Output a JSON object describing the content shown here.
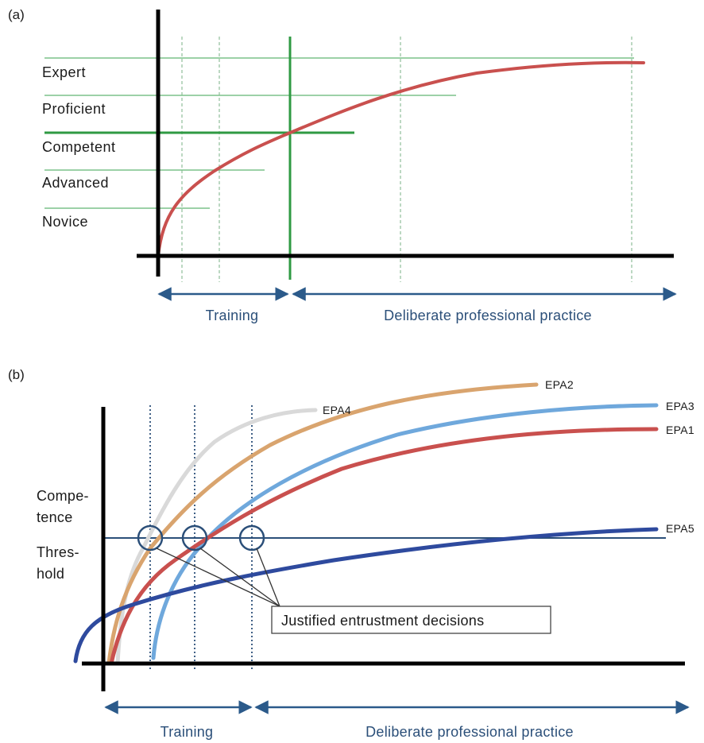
{
  "panel_a": {
    "label": "(a)",
    "levels": [
      "Expert",
      "Proficient",
      "Competent",
      "Advanced",
      "Novice"
    ],
    "phases": {
      "training": "Training",
      "practice": "Deliberate professional practice"
    }
  },
  "panel_b": {
    "label": "(b)",
    "threshold_label": [
      "Compe-",
      "tence",
      "Thres-",
      "hold"
    ],
    "epas": [
      "EPA4",
      "EPA2",
      "EPA3",
      "EPA1",
      "EPA5"
    ],
    "callout": "Justified entrustment decisions",
    "phases": {
      "training": "Training",
      "practice": "Deliberate professional practice"
    }
  },
  "colors": {
    "curve_a": "#c9504e",
    "level_lines": "#7cc28a",
    "competent_line": "#2f9a43",
    "axis": "#000000",
    "phase_arrows": "#2b5a8a",
    "epa4": "#d9d9d9",
    "epa2": "#d9a46e",
    "epa3": "#6fa8dc",
    "epa1": "#c9504e",
    "epa5": "#2e4a9e",
    "threshold": "#2b4f79"
  }
}
